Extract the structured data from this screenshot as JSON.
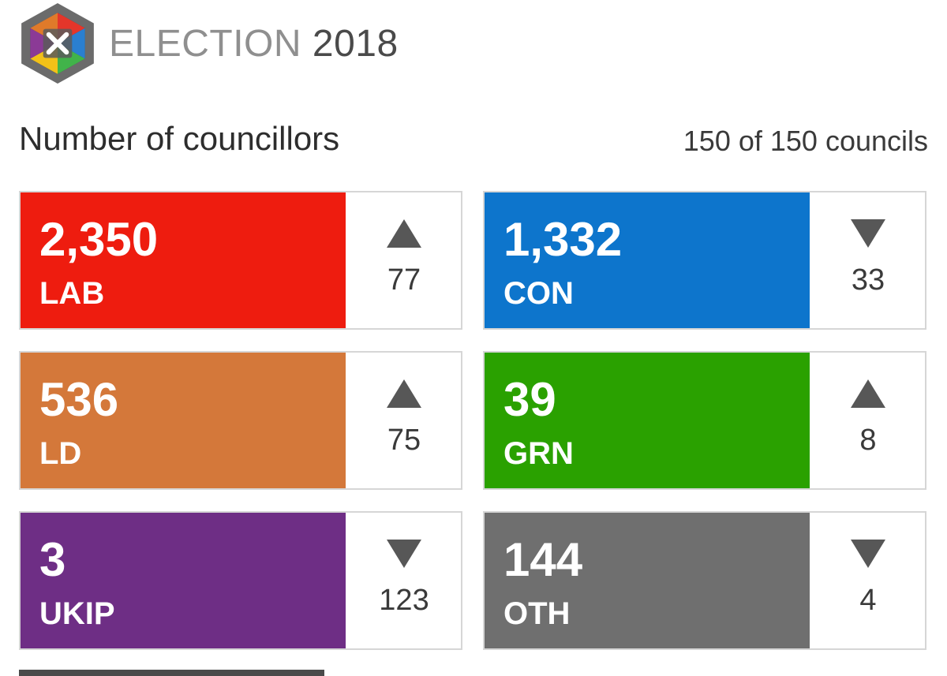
{
  "header": {
    "brand": "ELECTION",
    "year": "2018"
  },
  "title": "Number of councillors",
  "councils_status": "150 of 150 councils",
  "parties": [
    {
      "seats": "2,350",
      "party": "LAB",
      "direction": "up",
      "change": "77",
      "color": "#ee1c0f"
    },
    {
      "seats": "1,332",
      "party": "CON",
      "direction": "down",
      "change": "33",
      "color": "#0d75cc"
    },
    {
      "seats": "536",
      "party": "LD",
      "direction": "up",
      "change": "75",
      "color": "#d4783a"
    },
    {
      "seats": "39",
      "party": "GRN",
      "direction": "up",
      "change": "8",
      "color": "#2aa100"
    },
    {
      "seats": "3",
      "party": "UKIP",
      "direction": "down",
      "change": "123",
      "color": "#6e2e85"
    },
    {
      "seats": "144",
      "party": "OTH",
      "direction": "down",
      "change": "4",
      "color": "#6f6f6f"
    }
  ]
}
